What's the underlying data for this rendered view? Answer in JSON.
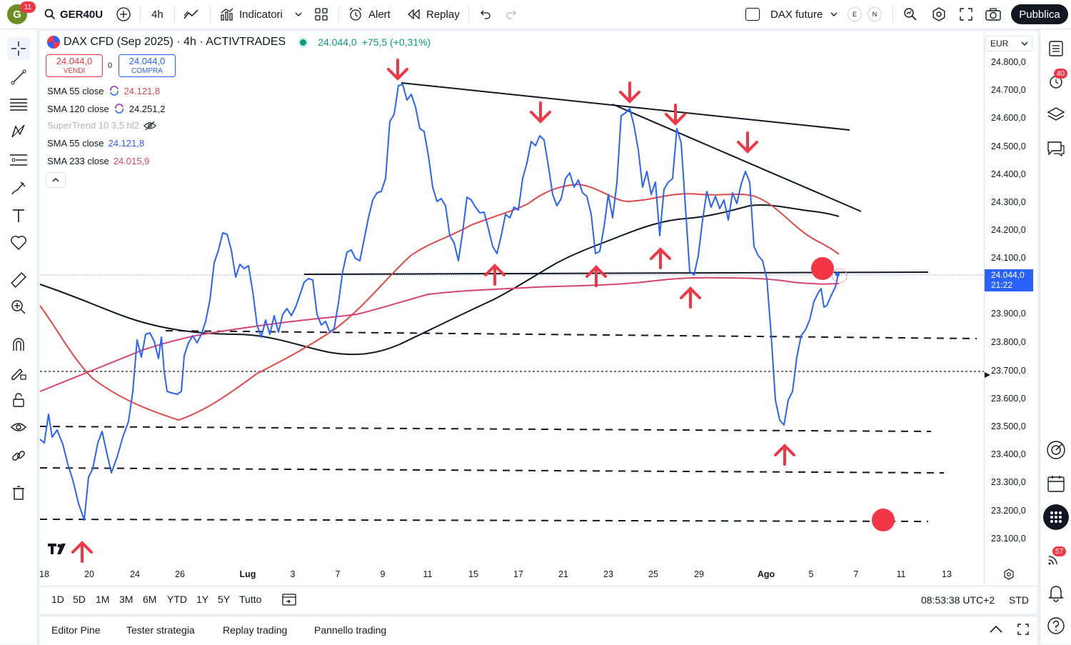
{
  "topbar": {
    "avatar_letter": "G",
    "avatar_badge": "11",
    "symbol": "GER40U",
    "interval": "4h",
    "indicators_label": "Indicatori",
    "alert_label": "Alert",
    "replay_label": "Replay",
    "compare_symbol": "DAX future",
    "badge_e": "E",
    "badge_n": "N",
    "publish_label": "Pubblica"
  },
  "legend": {
    "title": "DAX CFD (Sep 2025) · 4h · ACTIVTRADES",
    "last_price": "24.044,0",
    "change": "+75,5 (+0,31%)",
    "sell_price": "24.044,0",
    "sell_label": "VENDI",
    "spread": "0",
    "buy_price": "24.044,0",
    "buy_label": "COMPRA",
    "indicators": [
      {
        "name": "SMA 55 close",
        "value": "24.121,8",
        "color": "#e04848",
        "icon": "refresh-icon"
      },
      {
        "name": "SMA 120 close",
        "value": "24.251,2",
        "color": "#131722",
        "icon": "refresh-icon"
      },
      {
        "name": "SuperTrend 10 3,5 hl2",
        "value": "",
        "color": "#b2b5be",
        "icon": "eye-off-icon"
      },
      {
        "name": "SMA 55 close",
        "value": "24.121,8",
        "color": "#2962ff",
        "icon": ""
      },
      {
        "name": "SMA 233 close",
        "value": "24.015,9",
        "color": "#d6456e",
        "icon": ""
      }
    ]
  },
  "price_scale": {
    "currency": "EUR",
    "labels": [
      "24.800,0",
      "24.700,0",
      "24.600,0",
      "24.500,0",
      "24.400,0",
      "24.300,0",
      "24.200,0",
      "24.100,0",
      "23.900,0",
      "23.800,0",
      "23.700,0",
      "23.600,0",
      "23.500,0",
      "23.400,0",
      "23.300,0",
      "23.200,0",
      "23.100,0"
    ],
    "current_price": "24.044,0",
    "countdown": "21:22"
  },
  "time_axis": {
    "labels": [
      "18",
      "20",
      "24",
      "26",
      "Lug",
      "3",
      "7",
      "9",
      "11",
      "15",
      "17",
      "21",
      "23",
      "25",
      "29",
      "Ago",
      "5",
      "7",
      "11",
      "13"
    ]
  },
  "range_bar": {
    "ranges": [
      "1D",
      "5D",
      "1M",
      "3M",
      "6M",
      "YTD",
      "1Y",
      "5Y",
      "Tutto"
    ],
    "clock": "08:53:38 UTC+2",
    "session": "STD"
  },
  "bottom_tabs": [
    "Editor Pine",
    "Tester strategia",
    "Replay trading",
    "Pannello trading"
  ],
  "right_toolbar": {
    "alerts_badge": "40",
    "notifications_badge": "57"
  },
  "colors": {
    "price_line": "#2962ff",
    "sma55": "#e04848",
    "sma120": "#131722",
    "sma233": "#d6456e",
    "arrow": "#f23645"
  },
  "chart_data": {
    "type": "line",
    "symbol": "DAX CFD (Sep 2025)",
    "interval": "4h",
    "ylim": [
      23050,
      24850
    ],
    "x_ticks": [
      "18",
      "20",
      "24",
      "26",
      "Lug",
      "3",
      "7",
      "9",
      "11",
      "15",
      "17",
      "21",
      "23",
      "25",
      "29",
      "Ago",
      "5",
      "7",
      "11",
      "13"
    ],
    "series": [
      {
        "name": "SMA 55 close",
        "last": 24121.8
      },
      {
        "name": "SMA 120 close",
        "last": 24251.2
      },
      {
        "name": "SMA 233 close",
        "last": 24015.9
      }
    ],
    "last_price": 24044.0
  }
}
